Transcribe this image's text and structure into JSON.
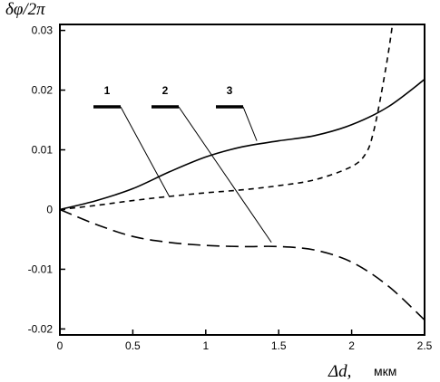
{
  "chart_data": {
    "type": "line",
    "ylabel": "δφ/2π",
    "xlabel": "Δd,",
    "xunit": "мкм",
    "xlim": [
      0,
      2.5
    ],
    "ylim": [
      -0.021,
      0.031
    ],
    "xticks": [
      0,
      0.5,
      1,
      1.5,
      2,
      2.5
    ],
    "xtick_labels": [
      "0",
      "0.5",
      "1",
      "1.5",
      "2",
      "2.5"
    ],
    "yticks": [
      0.03,
      0.02,
      0.01,
      0,
      -0.01,
      -0.02
    ],
    "ytick_labels": [
      "0.03",
      "0.02",
      "0.01",
      "0",
      "-0.01",
      "-0.02"
    ],
    "grid": false,
    "series": [
      {
        "name": "1",
        "style": "short-dash",
        "x": [
          0,
          0.25,
          0.5,
          0.75,
          1.0,
          1.25,
          1.5,
          1.75,
          2.0,
          2.1,
          2.15,
          2.2,
          2.25,
          2.28
        ],
        "y": [
          0,
          0.0007,
          0.0015,
          0.0022,
          0.0028,
          0.0033,
          0.004,
          0.005,
          0.0072,
          0.0095,
          0.013,
          0.019,
          0.026,
          0.031
        ]
      },
      {
        "name": "2",
        "style": "long-dash",
        "x": [
          0,
          0.25,
          0.5,
          0.75,
          1.0,
          1.25,
          1.5,
          1.75,
          2.0,
          2.25,
          2.5
        ],
        "y": [
          0,
          -0.0025,
          -0.0045,
          -0.0055,
          -0.006,
          -0.0062,
          -0.0062,
          -0.0068,
          -0.0088,
          -0.0128,
          -0.0185
        ]
      },
      {
        "name": "3",
        "style": "solid",
        "x": [
          0,
          0.25,
          0.5,
          0.75,
          1.0,
          1.25,
          1.5,
          1.75,
          2.0,
          2.25,
          2.5
        ],
        "y": [
          0,
          0.0015,
          0.0035,
          0.0063,
          0.0088,
          0.0105,
          0.0115,
          0.0124,
          0.0142,
          0.0172,
          0.0218
        ]
      }
    ],
    "legend": [
      {
        "label": "1",
        "points_to": [
          0.75,
          0.0022
        ]
      },
      {
        "label": "2",
        "points_to": [
          1.45,
          -0.0055
        ]
      },
      {
        "label": "3",
        "points_to": [
          1.35,
          0.0115
        ]
      }
    ]
  }
}
